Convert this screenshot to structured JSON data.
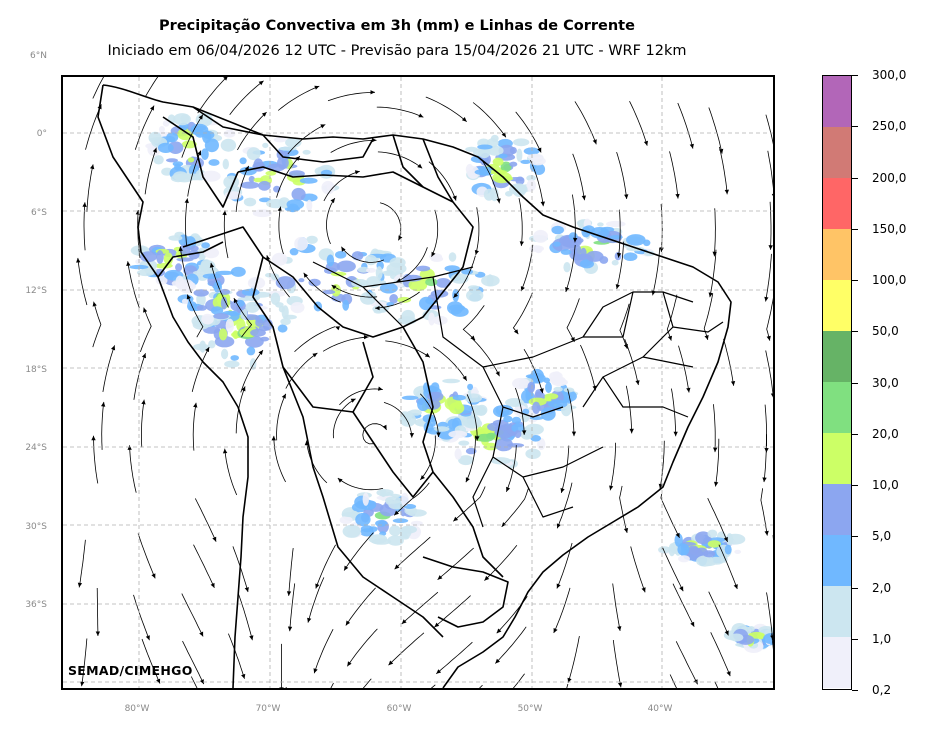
{
  "title_line1": "Precipitação Convectiva em 3h (mm) e Linhas de Corrente",
  "title_line2": "Iniciado em 06/04/2026 12 UTC - Previsão para 15/04/2026 21 UTC - WRF 12km",
  "credit": "SEMAD/CIMEHGO",
  "lat_labels": [
    "6°N",
    "0°",
    "6°S",
    "12°S",
    "18°S",
    "24°S",
    "30°S",
    "36°S"
  ],
  "lon_labels": [
    "80°W",
    "70°W",
    "60°W",
    "50°W",
    "40°W"
  ],
  "colorbar": {
    "labels": [
      "300,0",
      "250,0",
      "200,0",
      "150,0",
      "100,0",
      "50,0",
      "30,0",
      "20,0",
      "10,0",
      "5,0",
      "2,0",
      "1,0",
      "0,2"
    ],
    "colors_top_to_bottom": [
      "#b266b8",
      "#d17a75",
      "#ff6666",
      "#ffc466",
      "#ffff66",
      "#66b366",
      "#80e080",
      "#ccff66",
      "#8ca6f0",
      "#70b8ff",
      "#cce6f0",
      "#f0f0fa"
    ]
  },
  "map": {
    "layers": [
      "streamlines",
      "convective-precipitation",
      "coastline",
      "country-borders",
      "state-borders",
      "graticule"
    ]
  }
}
